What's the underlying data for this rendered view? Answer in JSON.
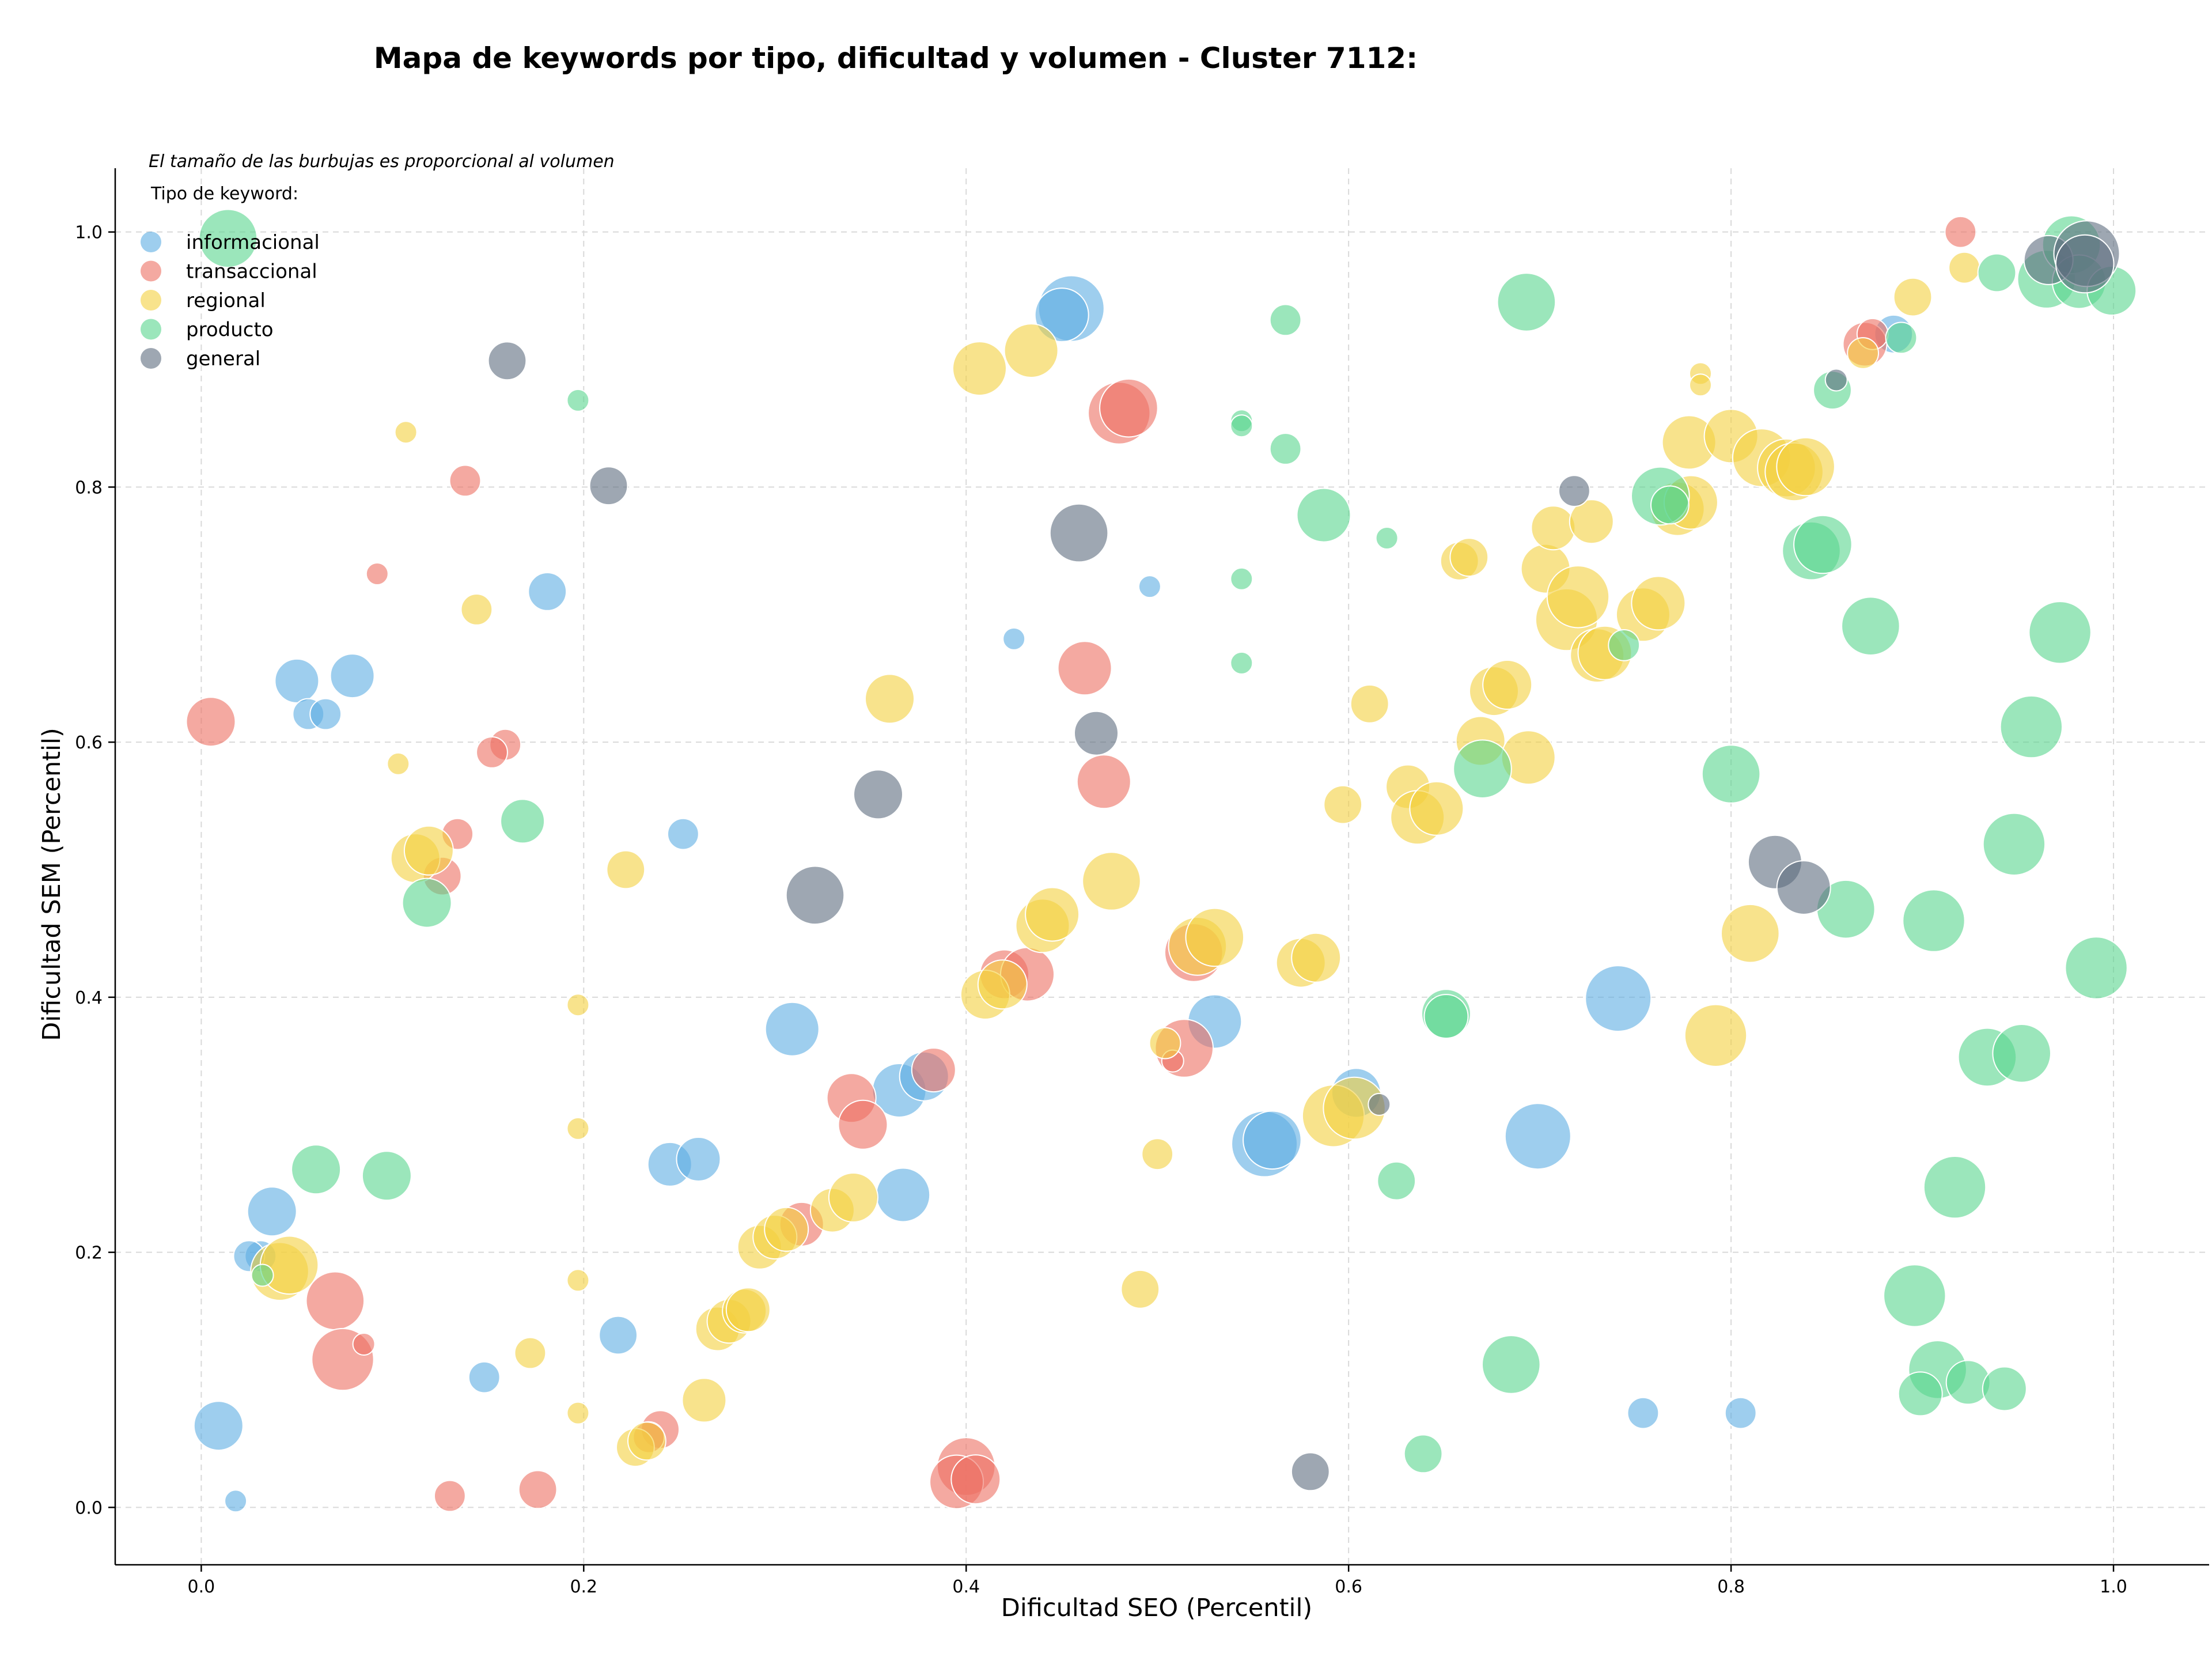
{
  "chart_data": {
    "type": "scatter",
    "title": "Mapa de keywords por tipo, dificultad y volumen - Cluster 7112:",
    "xlabel": "Dificultad SEO (Percentil)",
    "ylabel": "Dificultad SEM (Percentil)",
    "annotation": "El tamaño de las burbujas es proporcional al volumen",
    "legend_title": "Tipo de keyword:",
    "legend_position": "top-left",
    "grid": true,
    "xlim": [
      -0.045,
      1.05
    ],
    "ylim": [
      -0.045,
      1.05
    ],
    "xticks": [
      "0.0",
      "0.2",
      "0.4",
      "0.6",
      "0.8",
      "1.0"
    ],
    "yticks": [
      "0.0",
      "0.2",
      "0.4",
      "0.6",
      "0.8",
      "1.0"
    ],
    "size_scale": "radius proportional to sqrt(volume); volume in relative units (1-10)",
    "series": [
      {
        "name": "informacional",
        "color": "#5DADE2",
        "points": [
          [
            0.455,
            0.94,
            9
          ],
          [
            0.45,
            0.935,
            6
          ],
          [
            0.181,
            0.718,
            3
          ],
          [
            0.05,
            0.648,
            4
          ],
          [
            0.079,
            0.652,
            4
          ],
          [
            0.056,
            0.622,
            2
          ],
          [
            0.065,
            0.622,
            2
          ],
          [
            0.252,
            0.528,
            2
          ],
          [
            0.496,
            0.722,
            1
          ],
          [
            0.425,
            0.681,
            1
          ],
          [
            0.031,
            0.197,
            2
          ],
          [
            0.025,
            0.197,
            2
          ],
          [
            0.037,
            0.232,
            5
          ],
          [
            0.309,
            0.375,
            6
          ],
          [
            0.365,
            0.327,
            6
          ],
          [
            0.378,
            0.338,
            5
          ],
          [
            0.367,
            0.245,
            6
          ],
          [
            0.245,
            0.269,
            4
          ],
          [
            0.26,
            0.273,
            4
          ],
          [
            0.218,
            0.135,
            3
          ],
          [
            0.148,
            0.102,
            2
          ],
          [
            0.009,
            0.064,
            5
          ],
          [
            0.018,
            0.005,
            1
          ],
          [
            0.53,
            0.381,
            6
          ],
          [
            0.556,
            0.285,
            9
          ],
          [
            0.56,
            0.288,
            7
          ],
          [
            0.604,
            0.325,
            5
          ],
          [
            0.741,
            0.399,
            9
          ],
          [
            0.699,
            0.291,
            9
          ],
          [
            0.754,
            0.074,
            2
          ],
          [
            0.805,
            0.074,
            2
          ],
          [
            0.885,
            0.92,
            3
          ]
        ]
      },
      {
        "name": "transaccional",
        "color": "#EC7063",
        "points": [
          [
            0.005,
            0.616,
            5
          ],
          [
            0.092,
            0.732,
            1
          ],
          [
            0.138,
            0.805,
            2
          ],
          [
            0.159,
            0.598,
            2
          ],
          [
            0.152,
            0.592,
            2
          ],
          [
            0.134,
            0.528,
            2
          ],
          [
            0.126,
            0.495,
            3
          ],
          [
            0.07,
            0.162,
            7
          ],
          [
            0.074,
            0.116,
            8
          ],
          [
            0.085,
            0.128,
            1
          ],
          [
            0.13,
            0.009,
            2
          ],
          [
            0.176,
            0.014,
            3
          ],
          [
            0.24,
            0.061,
            3
          ],
          [
            0.234,
            0.055,
            2
          ],
          [
            0.314,
            0.222,
            4
          ],
          [
            0.34,
            0.321,
            5
          ],
          [
            0.346,
            0.3,
            5
          ],
          [
            0.383,
            0.343,
            4
          ],
          [
            0.4,
            0.032,
            7
          ],
          [
            0.395,
            0.02,
            6
          ],
          [
            0.405,
            0.022,
            5
          ],
          [
            0.42,
            0.418,
            5
          ],
          [
            0.432,
            0.418,
            6
          ],
          [
            0.462,
            0.658,
            6
          ],
          [
            0.472,
            0.569,
            6
          ],
          [
            0.48,
            0.858,
            8
          ],
          [
            0.485,
            0.862,
            7
          ],
          [
            0.514,
            0.36,
            7
          ],
          [
            0.508,
            0.35,
            1
          ],
          [
            0.519,
            0.435,
            7
          ],
          [
            0.87,
            0.912,
            4
          ],
          [
            0.92,
            1.0,
            2
          ],
          [
            0.874,
            0.92,
            2
          ]
        ]
      },
      {
        "name": "regional",
        "color": "#F4D03F",
        "points": [
          [
            0.107,
            0.843,
            1
          ],
          [
            0.144,
            0.704,
            2
          ],
          [
            0.103,
            0.583,
            1
          ],
          [
            0.112,
            0.509,
            5
          ],
          [
            0.119,
            0.515,
            5
          ],
          [
            0.222,
            0.5,
            3
          ],
          [
            0.197,
            0.394,
            1
          ],
          [
            0.197,
            0.297,
            1
          ],
          [
            0.197,
            0.178,
            1
          ],
          [
            0.197,
            0.074,
            1
          ],
          [
            0.172,
            0.121,
            2
          ],
          [
            0.041,
            0.185,
            7
          ],
          [
            0.046,
            0.19,
            7
          ],
          [
            0.227,
            0.047,
            3
          ],
          [
            0.233,
            0.052,
            3
          ],
          [
            0.263,
            0.084,
            4
          ],
          [
            0.27,
            0.14,
            4
          ],
          [
            0.276,
            0.146,
            4
          ],
          [
            0.284,
            0.154,
            4
          ],
          [
            0.286,
            0.155,
            4
          ],
          [
            0.292,
            0.204,
            4
          ],
          [
            0.3,
            0.212,
            4
          ],
          [
            0.306,
            0.218,
            4
          ],
          [
            0.33,
            0.233,
            4
          ],
          [
            0.341,
            0.243,
            5
          ],
          [
            0.36,
            0.634,
            5
          ],
          [
            0.407,
            0.893,
            6
          ],
          [
            0.434,
            0.907,
            6
          ],
          [
            0.41,
            0.402,
            5
          ],
          [
            0.419,
            0.41,
            5
          ],
          [
            0.44,
            0.456,
            6
          ],
          [
            0.445,
            0.465,
            6
          ],
          [
            0.476,
            0.491,
            7
          ],
          [
            0.5,
            0.277,
            2
          ],
          [
            0.491,
            0.171,
            3
          ],
          [
            0.504,
            0.364,
            2
          ],
          [
            0.521,
            0.44,
            7
          ],
          [
            0.53,
            0.447,
            7
          ],
          [
            0.575,
            0.427,
            5
          ],
          [
            0.583,
            0.431,
            5
          ],
          [
            0.592,
            0.307,
            8
          ],
          [
            0.603,
            0.313,
            8
          ],
          [
            0.597,
            0.551,
            3
          ],
          [
            0.611,
            0.63,
            3
          ],
          [
            0.631,
            0.565,
            4
          ],
          [
            0.636,
            0.541,
            6
          ],
          [
            0.646,
            0.548,
            6
          ],
          [
            0.658,
            0.742,
            3
          ],
          [
            0.663,
            0.745,
            3
          ],
          [
            0.669,
            0.601,
            5
          ],
          [
            0.676,
            0.64,
            5
          ],
          [
            0.683,
            0.645,
            5
          ],
          [
            0.694,
            0.588,
            6
          ],
          [
            0.703,
            0.736,
            5
          ],
          [
            0.707,
            0.768,
            4
          ],
          [
            0.714,
            0.696,
            8
          ],
          [
            0.72,
            0.714,
            8
          ],
          [
            0.727,
            0.773,
            4
          ],
          [
            0.73,
            0.668,
            6
          ],
          [
            0.734,
            0.67,
            6
          ],
          [
            0.754,
            0.7,
            6
          ],
          [
            0.762,
            0.709,
            6
          ],
          [
            0.772,
            0.783,
            6
          ],
          [
            0.779,
            0.788,
            6
          ],
          [
            0.778,
            0.835,
            6
          ],
          [
            0.8,
            0.84,
            6
          ],
          [
            0.816,
            0.823,
            7
          ],
          [
            0.829,
            0.815,
            7
          ],
          [
            0.833,
            0.812,
            7
          ],
          [
            0.839,
            0.816,
            7
          ],
          [
            0.784,
            0.889,
            1
          ],
          [
            0.784,
            0.88,
            1
          ],
          [
            0.81,
            0.45,
            7
          ],
          [
            0.792,
            0.37,
            8
          ],
          [
            0.869,
            0.905,
            2
          ],
          [
            0.895,
            0.949,
            3
          ],
          [
            0.922,
            0.972,
            2
          ]
        ]
      },
      {
        "name": "producto",
        "color": "#58D68D",
        "points": [
          [
            0.014,
            0.995,
            7
          ],
          [
            0.197,
            0.868,
            1
          ],
          [
            0.168,
            0.538,
            4
          ],
          [
            0.118,
            0.474,
            5
          ],
          [
            0.06,
            0.265,
            5
          ],
          [
            0.097,
            0.26,
            5
          ],
          [
            0.032,
            0.182,
            1
          ],
          [
            0.567,
            0.931,
            2
          ],
          [
            0.544,
            0.852,
            1
          ],
          [
            0.544,
            0.848,
            1
          ],
          [
            0.567,
            0.83,
            2
          ],
          [
            0.587,
            0.778,
            6
          ],
          [
            0.62,
            0.76,
            1
          ],
          [
            0.544,
            0.728,
            1
          ],
          [
            0.544,
            0.662,
            1
          ],
          [
            0.651,
            0.387,
            5
          ],
          [
            0.651,
            0.385,
            4
          ],
          [
            0.625,
            0.256,
            3
          ],
          [
            0.639,
            0.042,
            3
          ],
          [
            0.693,
            0.945,
            7
          ],
          [
            0.685,
            0.112,
            7
          ],
          [
            0.67,
            0.579,
            7
          ],
          [
            0.744,
            0.676,
            2
          ],
          [
            0.763,
            0.793,
            7
          ],
          [
            0.768,
            0.786,
            3
          ],
          [
            0.8,
            0.575,
            7
          ],
          [
            0.842,
            0.75,
            7
          ],
          [
            0.848,
            0.755,
            7
          ],
          [
            0.853,
            0.876,
            3
          ],
          [
            0.86,
            0.469,
            7
          ],
          [
            0.873,
            0.691,
            7
          ],
          [
            0.889,
            0.917,
            2
          ],
          [
            0.896,
            0.166,
            8
          ],
          [
            0.906,
            0.46,
            8
          ],
          [
            0.917,
            0.251,
            8
          ],
          [
            0.908,
            0.108,
            7
          ],
          [
            0.899,
            0.089,
            4
          ],
          [
            0.924,
            0.098,
            4
          ],
          [
            0.943,
            0.093,
            4
          ],
          [
            0.934,
            0.353,
            7
          ],
          [
            0.952,
            0.356,
            7
          ],
          [
            0.948,
            0.52,
            8
          ],
          [
            0.957,
            0.612,
            8
          ],
          [
            0.972,
            0.686,
            8
          ],
          [
            0.991,
            0.423,
            8
          ],
          [
            0.939,
            0.968,
            3
          ],
          [
            0.965,
            0.963,
            7
          ],
          [
            0.978,
            0.99,
            7
          ],
          [
            0.982,
            0.961,
            6
          ],
          [
            0.999,
            0.954,
            5
          ]
        ]
      },
      {
        "name": "general",
        "color": "#5D6D7E",
        "points": [
          [
            0.16,
            0.899,
            3
          ],
          [
            0.213,
            0.801,
            3
          ],
          [
            0.321,
            0.48,
            7
          ],
          [
            0.354,
            0.559,
            5
          ],
          [
            0.459,
            0.764,
            7
          ],
          [
            0.468,
            0.607,
            4
          ],
          [
            0.58,
            0.028,
            3
          ],
          [
            0.616,
            0.316,
            1
          ],
          [
            0.718,
            0.797,
            2
          ],
          [
            0.823,
            0.506,
            6
          ],
          [
            0.838,
            0.486,
            6
          ],
          [
            0.855,
            0.884,
            1
          ],
          [
            0.966,
            0.978,
            5
          ],
          [
            0.986,
            0.983,
            9
          ],
          [
            0.985,
            0.975,
            7
          ]
        ]
      }
    ]
  }
}
